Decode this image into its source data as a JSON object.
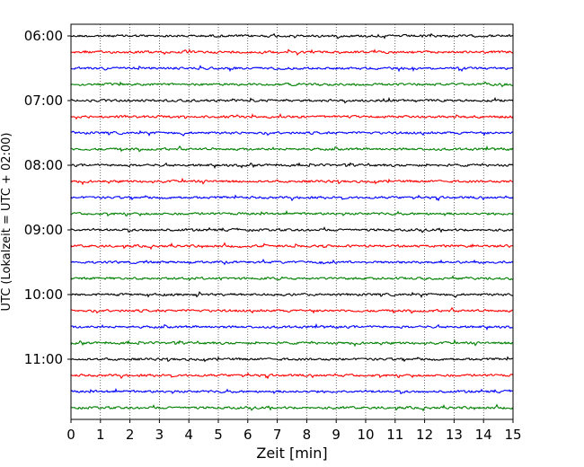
{
  "chart_data": {
    "type": "line",
    "title": "",
    "xlabel": "Zeit  [min]",
    "ylabel": "UTC (Lokalzeit = UTC + 02:00)",
    "xlim": [
      0,
      15
    ],
    "x_ticks": [
      "0",
      "1",
      "2",
      "3",
      "4",
      "5",
      "6",
      "7",
      "8",
      "9",
      "10",
      "11",
      "12",
      "13",
      "14",
      "15"
    ],
    "y_ticks": [
      "06:00",
      "07:00",
      "08:00",
      "09:00",
      "10:00",
      "11:00"
    ],
    "rows_per_hour": 4,
    "row_start_times": [
      "06:00",
      "06:15",
      "06:30",
      "06:45",
      "07:00",
      "07:15",
      "07:30",
      "07:45",
      "08:00",
      "08:15",
      "08:30",
      "08:45",
      "09:00",
      "09:15",
      "09:30",
      "09:45",
      "10:00",
      "10:15",
      "10:30",
      "10:45",
      "11:00",
      "11:15",
      "11:30",
      "11:45"
    ],
    "color_cycle": [
      "#000000",
      "#ff0000",
      "#0000ff",
      "#008000"
    ],
    "vertical_grid": "dotted",
    "legend": "none"
  }
}
